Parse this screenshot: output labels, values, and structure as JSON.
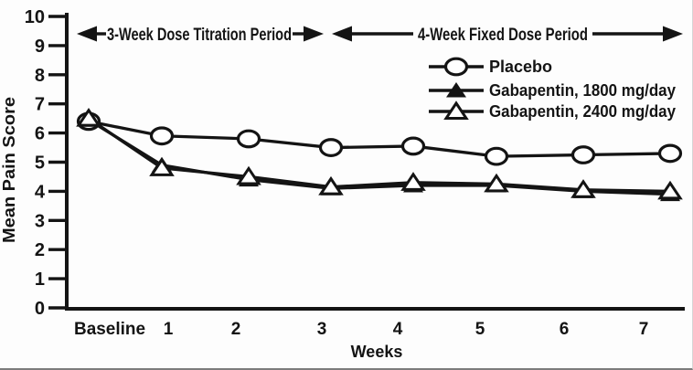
{
  "figure": {
    "background": "#fdfdfd",
    "ink": "#141414"
  },
  "chart_data": {
    "type": "line",
    "title": "",
    "xlabel": "Weeks",
    "ylabel": "Mean Pain Score",
    "ylim": [
      0,
      10
    ],
    "yticks": [
      10,
      9,
      8,
      7,
      6,
      5,
      4,
      3,
      2,
      1,
      0
    ],
    "grid": false,
    "categories": [
      "Baseline",
      "1",
      "2",
      "3",
      "4",
      "5",
      "6",
      "7"
    ],
    "series": [
      {
        "name": "Placebo",
        "marker": "open-circle",
        "values": [
          6.4,
          5.9,
          5.8,
          5.5,
          5.55,
          5.2,
          5.25,
          5.3
        ]
      },
      {
        "name": "Gabapentin, 1800 mg/day",
        "marker": "filled-triangle",
        "values": [
          6.45,
          4.9,
          4.4,
          4.1,
          4.2,
          4.2,
          4.0,
          3.9
        ]
      },
      {
        "name": "Gabapentin, 2400 mg/day",
        "marker": "open-triangle",
        "values": [
          6.5,
          4.8,
          4.5,
          4.15,
          4.3,
          4.25,
          4.05,
          4.0
        ]
      }
    ],
    "legend": {
      "position": "upper-right",
      "entries": [
        "Placebo",
        "Gabapentin, 1800 mg/day",
        "Gabapentin, 2400 mg/day"
      ]
    },
    "annotations": [
      {
        "text": "3-Week Dose Titration Period",
        "arrows": "double-headed",
        "x_range": [
          "Baseline",
          "3"
        ]
      },
      {
        "text": "4-Week Fixed Dose Period",
        "arrows": "double-headed",
        "x_range": [
          "3",
          "7"
        ]
      }
    ]
  }
}
